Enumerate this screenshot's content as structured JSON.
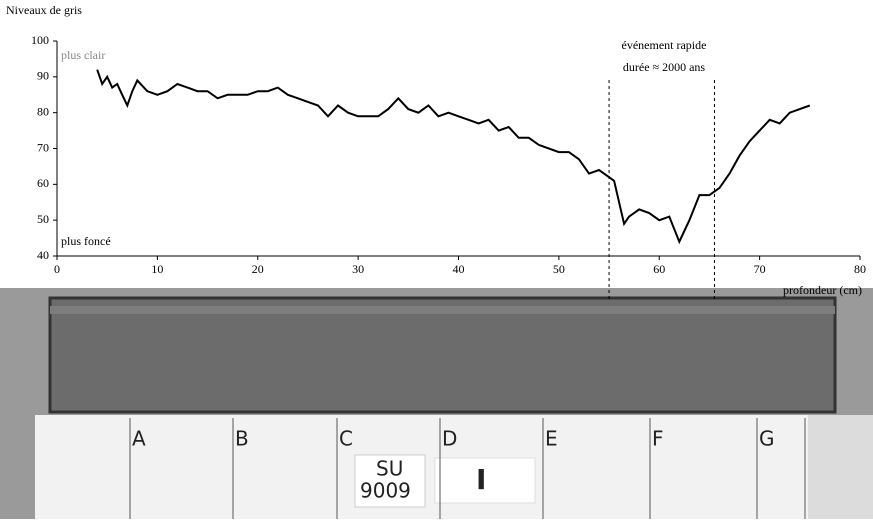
{
  "chart_data": {
    "type": "line",
    "y_title": "Niveaux de gris",
    "x_title": "profondeur (cm)",
    "annotations": {
      "light": "plus clair",
      "dark": "plus foncé",
      "event_line1": "événement rapide",
      "event_line2": "durée ≈ 2000 ans"
    },
    "event_range": [
      55,
      65.5
    ],
    "color": "#000000",
    "x": [
      4,
      4.5,
      5,
      5.5,
      6,
      6.5,
      7,
      7.5,
      8,
      9,
      10,
      11,
      12,
      13,
      14,
      15,
      16,
      17,
      18,
      19,
      20,
      21,
      22,
      23,
      24,
      25,
      26,
      27,
      28,
      29,
      30,
      31,
      32,
      33,
      34,
      35,
      36,
      37,
      38,
      39,
      40,
      41,
      42,
      43,
      44,
      45,
      46,
      47,
      48,
      49,
      50,
      51,
      52,
      53,
      54,
      55,
      55.5,
      56,
      56.5,
      57,
      58,
      59,
      60,
      61,
      62,
      63,
      64,
      65,
      66,
      67,
      68,
      69,
      70,
      71,
      72,
      73,
      74,
      75
    ],
    "values": [
      92,
      88,
      90,
      87,
      88,
      85,
      82,
      86,
      89,
      86,
      85,
      86,
      88,
      87,
      86,
      86,
      84,
      85,
      85,
      85,
      86,
      86,
      87,
      85,
      84,
      83,
      82,
      79,
      82,
      80,
      79,
      79,
      79,
      81,
      84,
      81,
      80,
      82,
      79,
      80,
      79,
      78,
      77,
      78,
      75,
      76,
      73,
      73,
      71,
      70,
      69,
      69,
      67,
      63,
      64,
      62,
      61,
      55,
      49,
      51,
      53,
      52,
      50,
      51,
      44,
      50,
      57,
      57,
      59,
      63,
      68,
      72,
      75,
      78,
      77,
      80,
      81,
      82
    ],
    "xlim": [
      0,
      80
    ],
    "xticks": [
      0,
      10,
      20,
      30,
      40,
      50,
      60,
      70,
      80
    ],
    "ylim": [
      40,
      100
    ],
    "yticks": [
      40,
      50,
      60,
      70,
      80,
      90,
      100
    ],
    "photo": {
      "letters": [
        "A",
        "B",
        "C",
        "D",
        "E",
        "F",
        "G"
      ],
      "tag": [
        "SU",
        "9009"
      ],
      "mark": "I"
    }
  }
}
